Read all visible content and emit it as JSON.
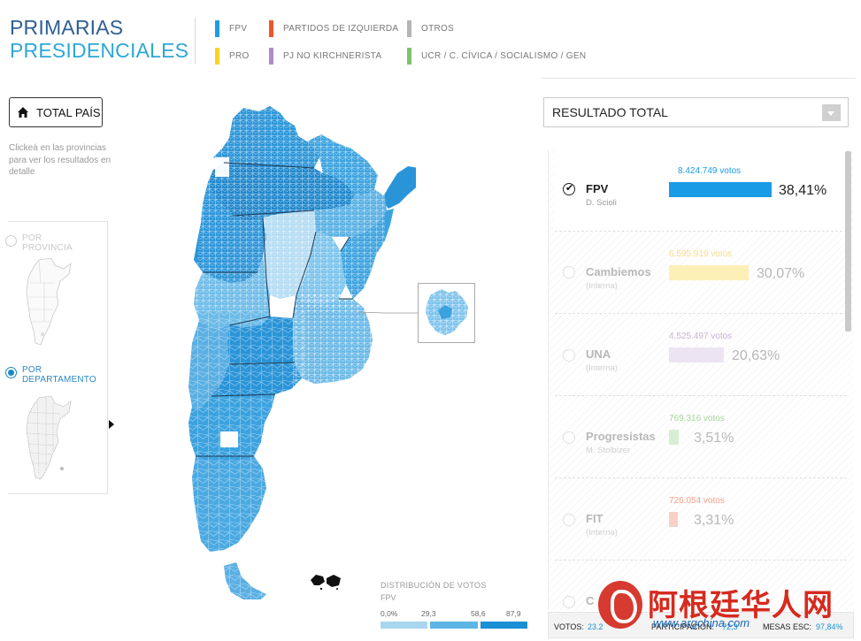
{
  "header": {
    "title_line1": "PRIMARIAS",
    "title_line2": "PRESIDENCIALES",
    "legend": [
      {
        "label": "FPV",
        "color": "#1a9be6"
      },
      {
        "label": "PARTIDOS DE IZQUIERDA",
        "color": "#f0552a"
      },
      {
        "label": "OTROS",
        "color": "#b5b5b5"
      },
      {
        "label": "PRO",
        "color": "#fcd22a"
      },
      {
        "label": "PJ NO KIRCHNERISTA",
        "color": "#b388c8"
      },
      {
        "label": "UCR / C. CÍVICA / SOCIALISMO / GEN",
        "color": "#7cc46a"
      }
    ]
  },
  "left_panel": {
    "total_button": "TOTAL PAÍS",
    "hint": "Clickeá en las provincias para ver los resultados en detalle",
    "modes": [
      {
        "label_line1": "POR",
        "label_line2": "PROVINCIA",
        "selected": false
      },
      {
        "label_line1": "POR",
        "label_line2": "DEPARTAMENTO",
        "selected": true
      }
    ]
  },
  "map": {
    "icons": [
      "argentina-map",
      "buenos-aires-inset-map",
      "malvinas-islands"
    ]
  },
  "distribution": {
    "title": "DISTRIBUCIÓN DE VOTOS",
    "party": "FPV",
    "ticks": [
      "0,0%",
      "29,3",
      "58,6",
      "87,9"
    ],
    "colors": [
      "#a9d6ef",
      "#5db5e4",
      "#1a8fd3"
    ]
  },
  "right_panel": {
    "select_value": "RESULTADO TOTAL",
    "results": [
      {
        "party": "FPV",
        "candidate": "D. Scioli",
        "votes": "8.424.749 votos",
        "pct": "38,41%",
        "pct_value": 38.41,
        "color": "#1a9be6",
        "selected": true
      },
      {
        "party": "Cambiemos",
        "candidate": "(Interna)",
        "votes": "6.595.919 votos",
        "pct": "30,07%",
        "pct_value": 30.07,
        "color": "#fcd22a",
        "selected": false
      },
      {
        "party": "UNA",
        "candidate": "(Interna)",
        "votes": "4.525.497 votos",
        "pct": "20,63%",
        "pct_value": 20.63,
        "color": "#b388c8",
        "selected": false
      },
      {
        "party": "Progresistas",
        "candidate": "M. Stolbizer",
        "votes": "769.316 votos",
        "pct": "3,51%",
        "pct_value": 3.51,
        "color": "#7cc46a",
        "selected": false
      },
      {
        "party": "FIT",
        "candidate": "(Interna)",
        "votes": "726.054 votos",
        "pct": "3,31%",
        "pct_value": 3.31,
        "color": "#f0552a",
        "selected": false
      },
      {
        "party": "C",
        "candidate": "",
        "votes": "",
        "pct": "",
        "pct_value": 0,
        "color": "#b5b5b5",
        "selected": false
      }
    ]
  },
  "footer": {
    "votos_label": "VOTOS:",
    "votos_value": "23.2",
    "participacion_label": "PARTICIPACIÓN:",
    "participacion_value": "72,3",
    "mesas_label": "MESAS ESC:",
    "mesas_value": "97,84%"
  },
  "watermark": {
    "chinese": "阿根廷华人网",
    "url": "www.argchina.com"
  }
}
